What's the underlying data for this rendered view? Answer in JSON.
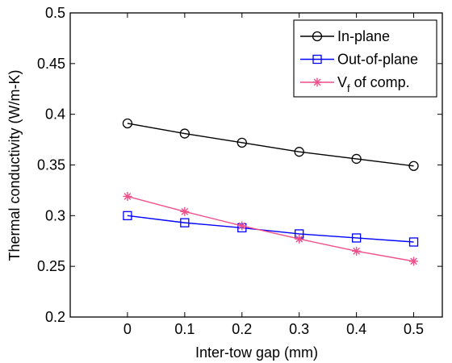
{
  "chart_data": {
    "type": "line",
    "title": "",
    "xlabel": "Inter-tow gap (mm)",
    "ylabel": "Thermal conductivity (W/m-K)",
    "xlim": [
      -0.1,
      0.55
    ],
    "ylim": [
      0.2,
      0.5
    ],
    "xticks": [
      0,
      0.1,
      0.2,
      0.3,
      0.4,
      0.5
    ],
    "xtick_labels": [
      "0",
      "0.1",
      "0.2",
      "0.3",
      "0.4",
      "0.5"
    ],
    "yticks": [
      0.2,
      0.25,
      0.3,
      0.35,
      0.4,
      0.45,
      0.5
    ],
    "ytick_labels": [
      "0.2",
      "0.25",
      "0.3",
      "0.35",
      "0.4",
      "0.45",
      "0.5"
    ],
    "x": [
      0,
      0.1,
      0.2,
      0.3,
      0.4,
      0.5
    ],
    "grid": false,
    "legend_position": "top-right",
    "series": [
      {
        "name": "In-plane",
        "legend_main": "In-plane",
        "legend_sub": "",
        "legend_after": "",
        "color": "#000000",
        "marker": "circle",
        "values": [
          0.391,
          0.381,
          0.372,
          0.363,
          0.356,
          0.349
        ]
      },
      {
        "name": "Out-of-plane",
        "legend_main": "Out-of-plane",
        "legend_sub": "",
        "legend_after": "",
        "color": "#0000ff",
        "marker": "square",
        "values": [
          0.3,
          0.293,
          0.288,
          0.282,
          0.278,
          0.274
        ]
      },
      {
        "name": "V_f of comp.",
        "legend_main": "V",
        "legend_sub": "f",
        "legend_after": " of comp.",
        "color": "#ee4f8a",
        "marker": "asterisk",
        "values": [
          0.319,
          0.304,
          0.29,
          0.277,
          0.265,
          0.255
        ]
      }
    ]
  }
}
